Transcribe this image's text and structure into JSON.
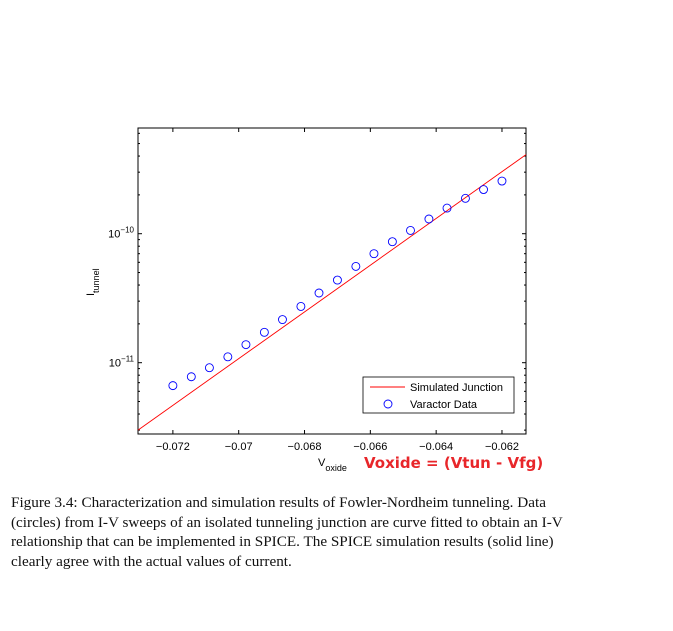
{
  "chart_data": {
    "type": "scatter",
    "title": "",
    "xlabel": "V",
    "xlabel_sub": "oxide",
    "ylabel": "I",
    "ylabel_sub": "tunnel",
    "xlim": [
      -0.07306,
      -0.06127
    ],
    "ylim": [
      2.8e-12,
      6.6e-10
    ],
    "yscale": "log",
    "grid": false,
    "x_ticks": [
      -0.072,
      -0.07,
      -0.068,
      -0.066,
      -0.064,
      -0.062
    ],
    "x_tick_labels": [
      "−0.072",
      "−0.07",
      "−0.068",
      "−0.066",
      "−0.064",
      "−0.062"
    ],
    "y_ticks": [
      {
        "base": "10",
        "exp": "−10",
        "value": 1e-10
      },
      {
        "base": "10",
        "exp": "−11",
        "value": 1e-11
      }
    ],
    "legend": {
      "placement": "bottom-right",
      "entries": [
        "Simulated Junction",
        "Varactor Data"
      ]
    },
    "series": [
      {
        "name": "Simulated Junction",
        "style": "line",
        "color": "#ff0000",
        "x": [
          -0.07306,
          -0.06127
        ],
        "y": [
          3e-12,
          4.1e-10
        ]
      },
      {
        "name": "Varactor Data",
        "style": "circle",
        "color": "#0000ff",
        "x": [
          -0.072,
          -0.07144,
          -0.07089,
          -0.07033,
          -0.06978,
          -0.06922,
          -0.06867,
          -0.06811,
          -0.06756,
          -0.067,
          -0.06644,
          -0.06589,
          -0.06533,
          -0.06478,
          -0.06422,
          -0.06367,
          -0.06311,
          -0.06256,
          -0.062
        ],
        "y": [
          6.64e-12,
          7.78e-12,
          9.14e-12,
          1.11e-11,
          1.38e-11,
          1.72e-11,
          2.16e-11,
          2.73e-11,
          3.47e-11,
          4.37e-11,
          5.58e-11,
          7e-11,
          8.67e-11,
          1.06e-10,
          1.3e-10,
          1.58e-10,
          1.88e-10,
          2.2e-10,
          2.56e-10
        ]
      }
    ]
  },
  "annotation": "Voxide = (Vtun - Vfg)",
  "caption_lines": [
    "Figure 3.4:  Characterization and simulation results of Fowler-Nordheim tunneling.  Data",
    "(circles) from I-V sweeps of an isolated tunneling junction are curve fitted to obtain an I-V",
    "relationship that can be implemented in SPICE. The SPICE simulation results (solid line)",
    "clearly agree with the actual values of current."
  ]
}
